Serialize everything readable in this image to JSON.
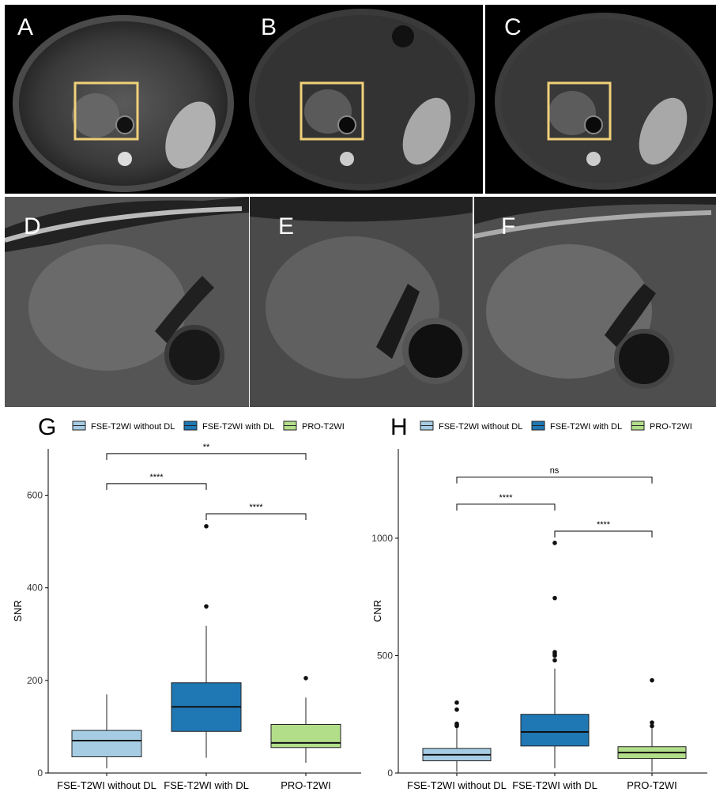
{
  "panels": {
    "top": [
      "A",
      "B",
      "C"
    ],
    "zoom": [
      "D",
      "E",
      "F"
    ],
    "charts": [
      "G",
      "H"
    ]
  },
  "colors": {
    "without_dl": "#a6cce3",
    "with_dl": "#1f78b4",
    "pro": "#b2de8a"
  },
  "chart_data": [
    {
      "type": "box",
      "panel": "G",
      "ylabel": "SNR",
      "xlabel": "",
      "ylim": [
        0,
        700
      ],
      "yticks": [
        0,
        200,
        400,
        600
      ],
      "legend_position": "top",
      "grid": false,
      "categories": [
        "FSE-T2WI without DL",
        "FSE-T2WI with DL",
        "PRO-T2WI"
      ],
      "series": [
        {
          "name": "FSE-T2WI without DL",
          "color": "#a6cce3",
          "min": 10,
          "q1": 35,
          "median": 70,
          "q3": 92,
          "max": 170,
          "outliers": []
        },
        {
          "name": "FSE-T2WI with DL",
          "color": "#1f78b4",
          "min": 33,
          "q1": 90,
          "median": 143,
          "q3": 195,
          "max": 318,
          "outliers": [
            360,
            533
          ]
        },
        {
          "name": "PRO-T2WI",
          "color": "#b2de8a",
          "min": 22,
          "q1": 55,
          "median": 65,
          "q3": 105,
          "max": 163,
          "outliers": [
            205
          ]
        }
      ],
      "comparisons": [
        {
          "from": 0,
          "to": 2,
          "label": "**",
          "y": 690
        },
        {
          "from": 0,
          "to": 1,
          "label": "****",
          "y": 625
        },
        {
          "from": 1,
          "to": 2,
          "label": "****",
          "y": 560
        }
      ]
    },
    {
      "type": "box",
      "panel": "H",
      "ylabel": "CNR",
      "xlabel": "",
      "ylim": [
        0,
        1380
      ],
      "yticks": [
        0,
        500,
        1000
      ],
      "legend_position": "top",
      "grid": false,
      "categories": [
        "FSE-T2WI without DL",
        "FSE-T2WI with DL",
        "PRO-T2WI"
      ],
      "series": [
        {
          "name": "FSE-T2WI without DL",
          "color": "#a6cce3",
          "min": 5,
          "q1": 52,
          "median": 78,
          "q3": 105,
          "max": 190,
          "outliers": [
            200,
            205,
            210,
            270,
            300
          ]
        },
        {
          "name": "FSE-T2WI with DL",
          "color": "#1f78b4",
          "min": 20,
          "q1": 115,
          "median": 175,
          "q3": 250,
          "max": 445,
          "outliers": [
            480,
            500,
            508,
            515,
            745,
            980
          ]
        },
        {
          "name": "PRO-T2WI",
          "color": "#b2de8a",
          "min": 5,
          "q1": 62,
          "median": 87,
          "q3": 112,
          "max": 190,
          "outliers": [
            200,
            215,
            395
          ]
        }
      ],
      "comparisons": [
        {
          "from": 0,
          "to": 2,
          "label": "ns",
          "y": 1260
        },
        {
          "from": 0,
          "to": 1,
          "label": "****",
          "y": 1145
        },
        {
          "from": 1,
          "to": 2,
          "label": "****",
          "y": 1030
        }
      ]
    }
  ]
}
